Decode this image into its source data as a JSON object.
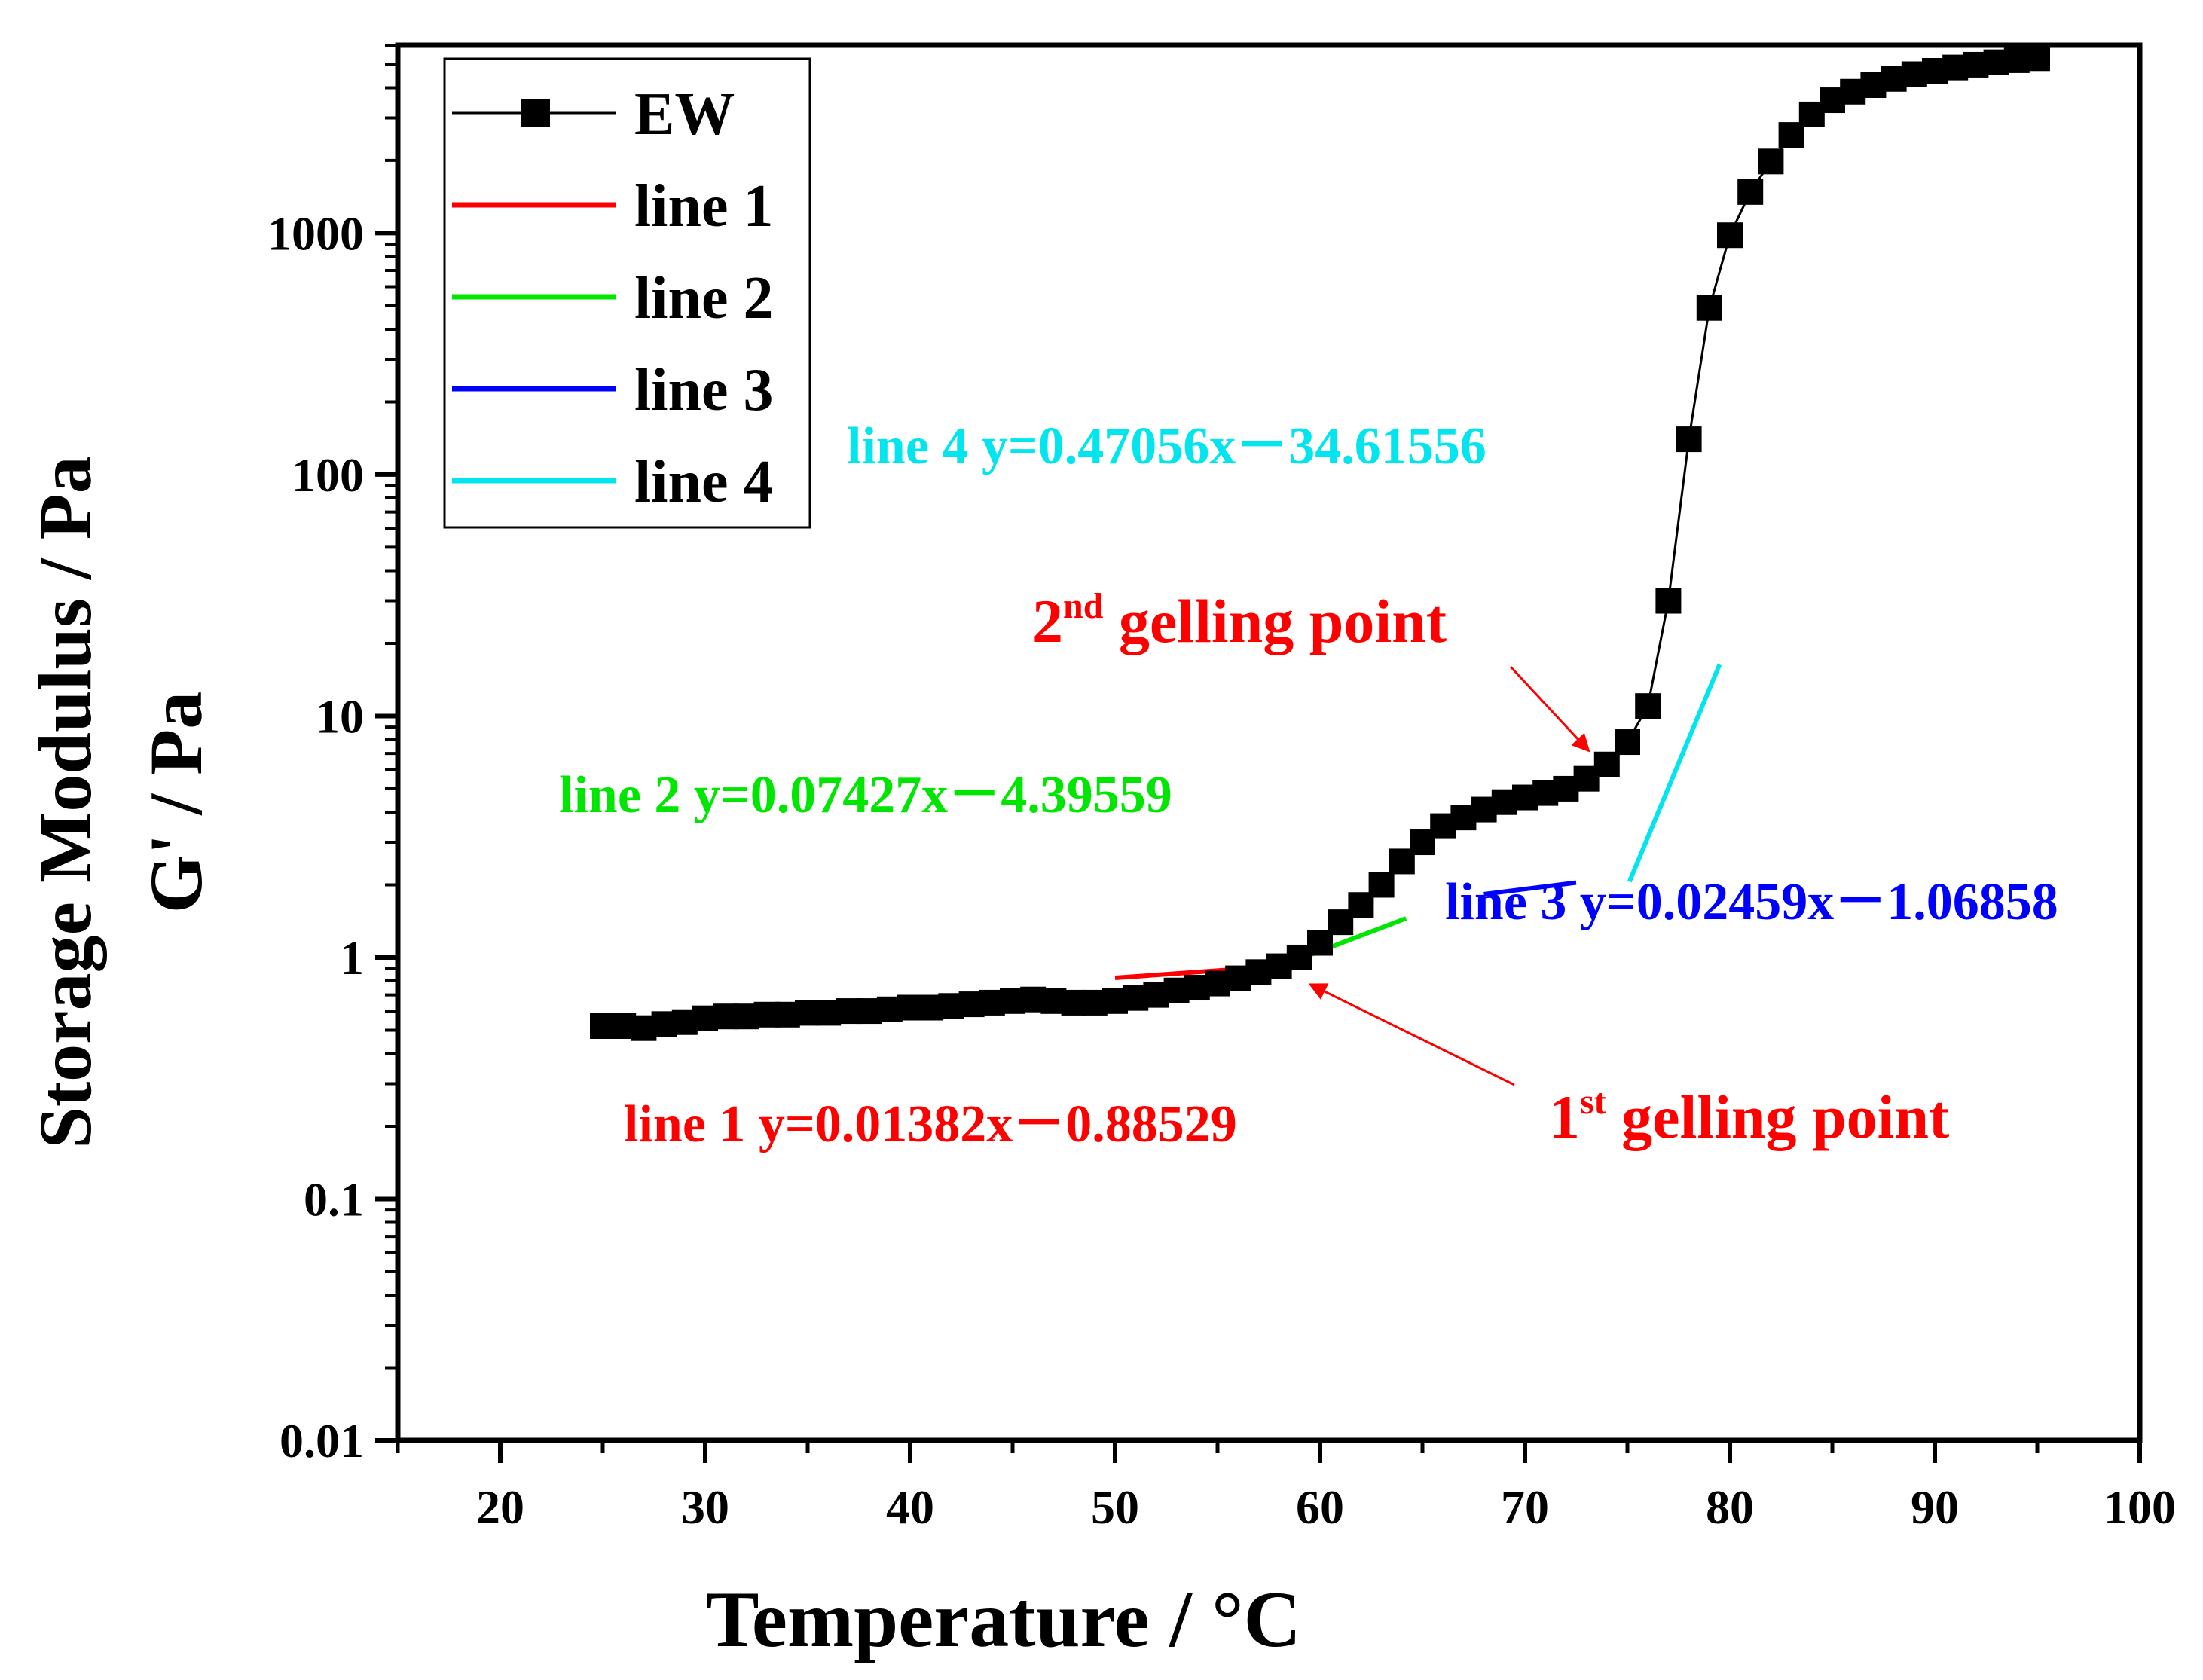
{
  "chart_data": {
    "type": "scatter",
    "title": "",
    "xlabel": "Temperature / °C",
    "ylabel_line1": "Storage Modulus / Pa",
    "ylabel_line2": "G' / Pa",
    "xlim": [
      15,
      100
    ],
    "ylim": [
      0.01,
      6000
    ],
    "yscale": "log",
    "x_ticks": [
      20,
      30,
      40,
      50,
      60,
      70,
      80,
      90,
      100
    ],
    "x_tick_labels": [
      "20",
      "30",
      "40",
      "50",
      "60",
      "70",
      "80",
      "90",
      "100"
    ],
    "y_ticks": [
      0.01,
      0.1,
      1,
      10,
      100,
      1000
    ],
    "y_tick_labels": [
      "0.01",
      "0.1",
      "1",
      "10",
      "100",
      "1000"
    ],
    "legend_position": "top-left",
    "series": [
      {
        "name": "EW",
        "kind": "line-marker",
        "color": "#000000",
        "x": [
          25,
          26,
          27,
          28,
          29,
          30,
          31,
          32,
          33,
          34,
          35,
          36,
          37,
          38,
          39,
          40,
          41,
          42,
          43,
          44,
          45,
          46,
          47,
          48,
          49,
          50,
          51,
          52,
          53,
          54,
          55,
          56,
          57,
          58,
          59,
          60,
          61,
          62,
          63,
          64,
          65,
          66,
          67,
          68,
          69,
          70,
          71,
          72,
          73,
          74,
          75,
          76,
          77,
          78,
          79,
          80,
          81,
          82,
          83,
          84,
          85,
          86,
          87,
          88,
          89,
          90,
          91,
          92,
          93,
          94,
          95
        ],
        "y": [
          0.52,
          0.52,
          0.51,
          0.53,
          0.54,
          0.56,
          0.57,
          0.57,
          0.58,
          0.58,
          0.59,
          0.59,
          0.6,
          0.6,
          0.61,
          0.62,
          0.62,
          0.63,
          0.64,
          0.65,
          0.66,
          0.67,
          0.66,
          0.65,
          0.65,
          0.66,
          0.68,
          0.7,
          0.73,
          0.75,
          0.78,
          0.82,
          0.87,
          0.92,
          1.0,
          1.15,
          1.4,
          1.65,
          2.0,
          2.5,
          3.0,
          3.5,
          3.8,
          4.1,
          4.4,
          4.6,
          4.8,
          5.0,
          5.5,
          6.3,
          7.8,
          11,
          30,
          140,
          490,
          980,
          1480,
          1980,
          2550,
          3100,
          3550,
          3850,
          4100,
          4350,
          4550,
          4700,
          4850,
          4980,
          5100,
          5200,
          5300
        ]
      },
      {
        "name": "line 1",
        "kind": "fit",
        "color": "#ff0000",
        "slope": 0.01382,
        "intercept": -0.88529,
        "x_range": [
          50,
          55.5
        ]
      },
      {
        "name": "line 2",
        "kind": "fit",
        "color": "#00e600",
        "slope": 0.07427,
        "intercept": -4.39559,
        "x_range": [
          59,
          64.2
        ]
      },
      {
        "name": "line 3",
        "kind": "fit",
        "color": "#0000ff",
        "slope": 0.02459,
        "intercept": -1.06858,
        "x_range": [
          68,
          72.5
        ]
      },
      {
        "name": "line 4",
        "kind": "fit",
        "color": "#00e5ee",
        "slope": 0.47056,
        "intercept": -34.61556,
        "x_range": [
          75.1,
          79.5
        ]
      }
    ],
    "annotations": [
      {
        "name": "annotation-line1",
        "text": "line 1 y=0.01382x－0.88529",
        "color": "#ff0000"
      },
      {
        "name": "annotation-line2",
        "text": "line 2 y=0.07427x－4.39559",
        "color": "#00e600"
      },
      {
        "name": "annotation-line3",
        "text": "line 3 y=0.02459x－1.06858",
        "color": "#0000ff"
      },
      {
        "name": "annotation-line4",
        "text": "line 4 y=0.47056x－34.61556",
        "color": "#00e5ee"
      }
    ],
    "gelling_points": [
      {
        "name": "first-gelling-point",
        "prefix": "1",
        "sup": "st",
        "suffix": " gelling point",
        "color": "#ff0000",
        "target_x": 59,
        "target_y": 0.82
      },
      {
        "name": "second-gelling-point",
        "prefix": "2",
        "sup": "nd",
        "suffix": " gelling point",
        "color": "#ff0000",
        "target_x": 74,
        "target_y": 6.3
      }
    ]
  }
}
